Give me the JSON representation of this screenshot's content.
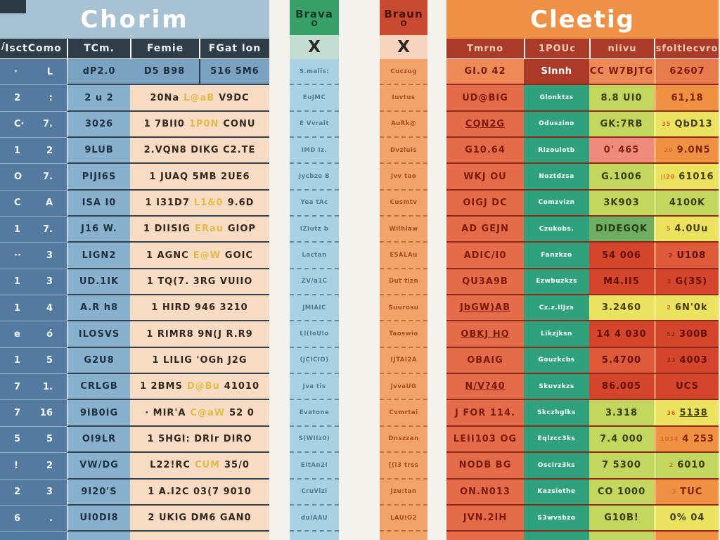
{
  "palette": {
    "page_bg": "#f4f2ec",
    "left_title_bg": "#a7c2d3",
    "left_header_bg": "#2f3d49",
    "left_col1_bg": "#547a9f",
    "left_col2_bg": "#88b1cd",
    "left_row1_bg": "#7aa3c2",
    "left_detail_bg": "#f7dcc3",
    "highlight_text": "#e0bd48",
    "bravo_header_bg": "#37a167",
    "bravo_x_bg": "#c3ddd2",
    "bravo_body_bg": "#a9d1e1",
    "braun_header_bg": "#c84a30",
    "braun_x_bg": "#f6d3bd",
    "braun_body_bg": "#f1a369",
    "right_title_bg": "#ee9147",
    "right_header_bg": "#a93b28",
    "right_col1_bg": "#e56c49",
    "right_green_bg": "#2fa17d",
    "cell_yellow_green": "#c3d75e",
    "cell_yellow": "#ebe35f",
    "cell_pink": "#ee8b7c",
    "cell_red": "#d5452c",
    "cell_orange": "#ef9042",
    "cell_green": "#6fae62"
  },
  "chart_data": {
    "type": "table",
    "title": "Comparison infographic with garbled pseudo-text",
    "tables": {
      "left": {
        "title": "Chorim",
        "corner_mark": "/",
        "headers": [
          "IsctComo",
          "TCm.",
          "Femie",
          "FGat lon"
        ],
        "rows": [
          {
            "n1": "·",
            "n2": "L",
            "c2": "dP2.0",
            "blue": [
              "D5 B98",
              "516 5M6"
            ]
          },
          {
            "n1": "2",
            "n2": ":",
            "c2": "2 u 2",
            "a": "20Na",
            "y": "L@aB",
            "b": "V9DC"
          },
          {
            "n1": "C·",
            "n2": "7.",
            "c2": "3026",
            "a": "1 7BII0",
            "y": "1P0N",
            "b": "CONU"
          },
          {
            "n1": "1",
            "n2": "2",
            "c2": "9LUB",
            "a": "2.VQN8 DIKG C2.TE",
            "y": "",
            "b": ""
          },
          {
            "n1": "O",
            "n2": "7.",
            "c2": "PIJI6S",
            "a": "1 JUAQ 5MB 2UE6",
            "y": "",
            "b": ""
          },
          {
            "n1": "C",
            "n2": "A",
            "c2": "ISA I0",
            "a": "1 I31D7",
            "y": "L1&0",
            "b": "9.6D"
          },
          {
            "n1": "1",
            "n2": "7.",
            "c2": "J16 W.",
            "a": "1 DIISIG",
            "y": "ERau",
            "b": "GIOP"
          },
          {
            "n1": "··",
            "n2": "3",
            "c2": "LIGN2",
            "a": "1 AGNC",
            "y": "E@W",
            "b": "GOIC"
          },
          {
            "n1": "1",
            "n2": "3",
            "c2": "UD.1IK",
            "a": "1 TQ(7. 3RG VUIIO",
            "y": "",
            "b": ""
          },
          {
            "n1": "1",
            "n2": "4",
            "c2": "A.R h8",
            "a": "1 HIRD 946 3210",
            "y": "",
            "b": ""
          },
          {
            "n1": "e",
            "n2": "ó",
            "c2": "ILOSVS",
            "a": "1 RIMR8 9N(J R.R9",
            "y": "",
            "b": ""
          },
          {
            "n1": "1",
            "n2": "5",
            "c2": "G2U8",
            "a": "1 LILIG 'OGh J2G",
            "y": "",
            "b": ""
          },
          {
            "n1": "7",
            "n2": "1.",
            "c2": "CRLGB",
            "a": "1 2BMS",
            "y": "D@Bu",
            "b": "41010"
          },
          {
            "n1": "7",
            "n2": "16",
            "c2": "9IB0IG",
            "a": "· MIR'A",
            "y": "C@aW",
            "b": "52 0"
          },
          {
            "n1": "5",
            "n2": "5",
            "c2": "OI9LR",
            "a": "1 5HGI: DRIr DIRO",
            "y": "",
            "b": ""
          },
          {
            "n1": "!",
            "n2": "2",
            "c2": "VW/DG",
            "a": "L22!RC",
            "y": "CUM",
            "b": "35/0"
          },
          {
            "n1": "2",
            "n2": "3",
            "c2": "9I20'S",
            "a": "1 A.I2C 03(7 9010",
            "y": "",
            "b": ""
          },
          {
            "n1": "6",
            "n2": ".",
            "c2": "UI0DI8",
            "a": "2 UKIG DM6 GAN0",
            "y": "",
            "b": ""
          }
        ]
      },
      "bravo": {
        "title": "Brava",
        "mark": "O",
        "x_label": "X",
        "cells": [
          "S.malis:",
          "EuJMC",
          "E Vvralt",
          "IMD Iz.",
          "Jycbze B",
          "Yea tAc",
          "IZIutz b",
          "Lactan",
          "ZV/a1C",
          "JMIAIC",
          "LI(IoUIo",
          "(JCICIO)",
          "Jva tis",
          "Evatone",
          "S(WIIz0)",
          "EItAn2I",
          "CruVizi",
          "duIAAU"
        ]
      },
      "braun": {
        "title": "Braun",
        "mark": "O",
        "x_label": "X",
        "cells": [
          "Cuczug",
          "Iuvtus",
          "AuRk@",
          "Dvzluis",
          "Jvv tao",
          "Cusmtv",
          "Wilhlaw",
          "E5ALAu",
          "Dut tizn",
          "Suurosu",
          "Taoswio",
          "(JTAI2A",
          "JvvaUG",
          "Cvmrtai",
          "Dnszzan",
          "[(i3 trss",
          "Jzu:tan",
          "LAUIO2"
        ]
      },
      "right": {
        "title": "Cleetig",
        "headers": [
          "Tmrno",
          "1POUc",
          "niivu",
          "sfoltlecvro"
        ],
        "rows": [
          {
            "c1": "GI.0 42",
            "c1u": false,
            "first": true,
            "c2": "Slnnh",
            "c2red": true,
            "c3": "CC W7BJTG",
            "c3bg": "orange1",
            "c4": "62607",
            "c4bg": "orange2",
            "c4u": false,
            "pre": ""
          },
          {
            "c1": "UD@BIG",
            "c1u": false,
            "c2": "Glonktzs",
            "c3": "8.8 UI0",
            "c3bg": "yg",
            "c4": "61,18",
            "c4bg": "orange",
            "c4u": false,
            "pre": ""
          },
          {
            "c1": "CQN2G",
            "c1u": true,
            "c2": "Oduszino",
            "c3": "GK:7RB",
            "c3bg": "yg",
            "c4": "QbD13",
            "c4bg": "yellow",
            "c4u": false,
            "pre": "35"
          },
          {
            "c1": "G10.64",
            "c1u": false,
            "c2": "Rizoulotb",
            "c3": "0' 465",
            "c3bg": "pink",
            "c4": "9.0N5",
            "c4bg": "orange",
            "c4u": false,
            "pre": "20"
          },
          {
            "c1": "WKJ OU",
            "c1u": false,
            "c2": "Noztdzsa",
            "c3": "G.1006",
            "c3bg": "yg",
            "c4": "61016",
            "c4bg": "yellow",
            "c4u": false,
            "pre": "|i20"
          },
          {
            "c1": "OIGJ DC",
            "c1u": false,
            "c2": "Comzvizn",
            "c3": "3K903",
            "c3bg": "yg",
            "c4": "4100K",
            "c4bg": "yg",
            "c4u": false,
            "pre": ""
          },
          {
            "c1": "AD GEJN",
            "c1u": false,
            "c2": "Czukobs.",
            "c3": "DIDEGQK",
            "c3bg": "green",
            "c4": "4.0Uu",
            "c4bg": "yellow",
            "c4u": false,
            "pre": "5"
          },
          {
            "c1": "ADIC/I0",
            "c1u": false,
            "c2": "Fanzkzo",
            "c3": "54 006",
            "c3bg": "red",
            "c4": "U108",
            "c4bg": "red2",
            "c4u": false,
            "pre": "2"
          },
          {
            "c1": "QU3A9B",
            "c1u": false,
            "c2": "Ezwbuzkzs",
            "c3": "M4.II5",
            "c3bg": "red",
            "c4": "G(35)",
            "c4bg": "red",
            "c4u": false,
            "pre": "2"
          },
          {
            "c1": "JbGW)AB",
            "c1u": true,
            "c2": "Cz.z.IIJzs",
            "c3": "3.2460",
            "c3bg": "yellow",
            "c4": "6N'0k",
            "c4bg": "yellow",
            "c4u": false,
            "pre": "2"
          },
          {
            "c1": "OBKJ HQ",
            "c1u": true,
            "c2": "Likzjksn",
            "c3": "14 4 030",
            "c3bg": "red",
            "c4": "300B",
            "c4bg": "red",
            "c4u": false,
            "pre": "52"
          },
          {
            "c1": "OBAIG",
            "c1u": false,
            "c2": "Gouzkcbs",
            "c3": "5.4700",
            "c3bg": "red2",
            "c4": "4003",
            "c4bg": "red",
            "c4u": false,
            "pre": "23"
          },
          {
            "c1": "N/V?40",
            "c1u": true,
            "c2": "Skuvzkzs",
            "c3": "86.005",
            "c3bg": "red",
            "c4": "UCS",
            "c4bg": "red",
            "c4u": false,
            "pre": ""
          },
          {
            "c1": "J FOR 114.",
            "c1u": false,
            "c2": "Skczhglks",
            "c3": "3.318",
            "c3bg": "yg",
            "c4": "5138",
            "c4bg": "yellow",
            "c4u": true,
            "pre": "36"
          },
          {
            "c1": "LEII103 OG",
            "c1u": false,
            "c2": "Eqlzcc3ks",
            "c3": "7.4 000",
            "c3bg": "yg",
            "c4": "4 253",
            "c4bg": "orange",
            "c4u": false,
            "pre": "1034"
          },
          {
            "c1": "NODB BG",
            "c1u": false,
            "c2": "Oscirz3ks",
            "c3": "7 5300",
            "c3bg": "yg",
            "c4": "6010",
            "c4bg": "yg",
            "c4u": false,
            "pre": "2"
          },
          {
            "c1": "ON.N013",
            "c1u": false,
            "c2": "Kazsiethe",
            "c3": "CO 1000",
            "c3bg": "yg",
            "c4": "TUC",
            "c4bg": "orange",
            "c4u": false,
            "pre": "3"
          },
          {
            "c1": "JVN.2IH",
            "c1u": false,
            "c2": "S3wvsbzo",
            "c3": "G10B!",
            "c3bg": "yg",
            "c4": "0% 04",
            "c4bg": "yellow",
            "c4u": false,
            "pre": ""
          }
        ]
      }
    }
  }
}
